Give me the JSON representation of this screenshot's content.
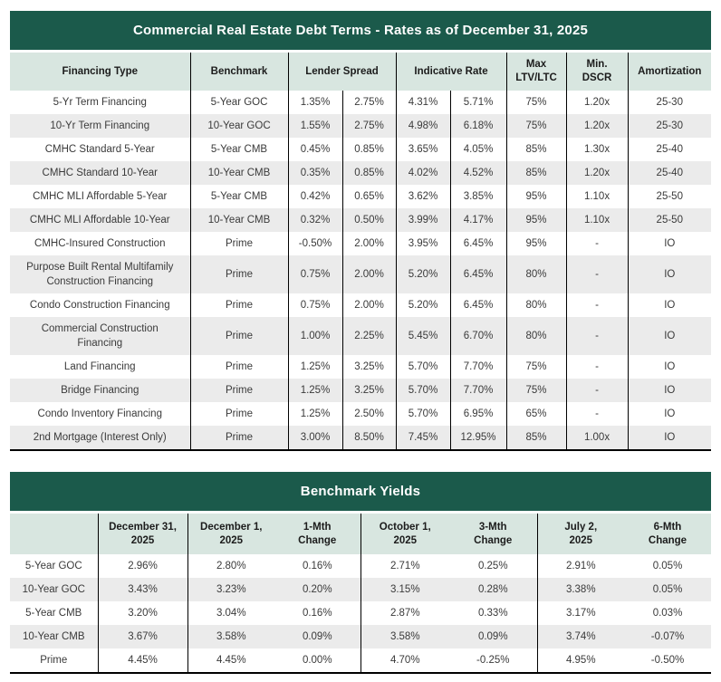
{
  "brand_colors": {
    "dark_green": "#1b5a4b",
    "light_green_header": "#d8e6e0",
    "alt_row_gray": "#ebebeb"
  },
  "debt_table": {
    "title": "Commercial Real Estate Debt Terms - Rates as of December 31, 2025",
    "headers": [
      "Financing Type",
      "Benchmark",
      "Lender Spread",
      "Indicative Rate",
      "Max\nLTV/LTC",
      "Min.\nDSCR",
      "Amortization"
    ],
    "rows": [
      [
        "5-Yr Term Financing",
        "5-Year GOC",
        "1.35%",
        "2.75%",
        "4.31%",
        "5.71%",
        "75%",
        "1.20x",
        "25-30"
      ],
      [
        "10-Yr Term Financing",
        "10-Year GOC",
        "1.55%",
        "2.75%",
        "4.98%",
        "6.18%",
        "75%",
        "1.20x",
        "25-30"
      ],
      [
        "CMHC Standard 5-Year",
        "5-Year CMB",
        "0.45%",
        "0.85%",
        "3.65%",
        "4.05%",
        "85%",
        "1.30x",
        "25-40"
      ],
      [
        "CMHC Standard 10-Year",
        "10-Year CMB",
        "0.35%",
        "0.85%",
        "4.02%",
        "4.52%",
        "85%",
        "1.20x",
        "25-40"
      ],
      [
        "CMHC MLI Affordable 5-Year",
        "5-Year CMB",
        "0.42%",
        "0.65%",
        "3.62%",
        "3.85%",
        "95%",
        "1.10x",
        "25-50"
      ],
      [
        "CMHC MLI Affordable 10-Year",
        "10-Year CMB",
        "0.32%",
        "0.50%",
        "3.99%",
        "4.17%",
        "95%",
        "1.10x",
        "25-50"
      ],
      [
        "CMHC-Insured Construction",
        "Prime",
        "-0.50%",
        "2.00%",
        "3.95%",
        "6.45%",
        "95%",
        "-",
        "IO"
      ],
      [
        "Purpose Built Rental Multifamily\nConstruction Financing",
        "Prime",
        "0.75%",
        "2.00%",
        "5.20%",
        "6.45%",
        "80%",
        "-",
        "IO"
      ],
      [
        "Condo Construction Financing",
        "Prime",
        "0.75%",
        "2.00%",
        "5.20%",
        "6.45%",
        "80%",
        "-",
        "IO"
      ],
      [
        "Commercial Construction\nFinancing",
        "Prime",
        "1.00%",
        "2.25%",
        "5.45%",
        "6.70%",
        "80%",
        "-",
        "IO"
      ],
      [
        "Land Financing",
        "Prime",
        "1.25%",
        "3.25%",
        "5.70%",
        "7.70%",
        "75%",
        "-",
        "IO"
      ],
      [
        "Bridge Financing",
        "Prime",
        "1.25%",
        "3.25%",
        "5.70%",
        "7.70%",
        "75%",
        "-",
        "IO"
      ],
      [
        "Condo Inventory Financing",
        "Prime",
        "1.25%",
        "2.50%",
        "5.70%",
        "6.95%",
        "65%",
        "-",
        "IO"
      ],
      [
        "2nd Mortgage (Interest Only)",
        "Prime",
        "3.00%",
        "8.50%",
        "7.45%",
        "12.95%",
        "85%",
        "1.00x",
        "IO"
      ]
    ]
  },
  "yields_table": {
    "title": "Benchmark Yields",
    "headers": [
      "",
      "December 31,\n2025",
      "December 1,\n2025",
      "1-Mth\nChange",
      "October 1,\n2025",
      "3-Mth\nChange",
      "July 2,\n2025",
      "6-Mth\nChange"
    ],
    "rows": [
      [
        "5-Year GOC",
        "2.96%",
        "2.80%",
        "0.16%",
        "2.71%",
        "0.25%",
        "2.91%",
        "0.05%"
      ],
      [
        "10-Year GOC",
        "3.43%",
        "3.23%",
        "0.20%",
        "3.15%",
        "0.28%",
        "3.38%",
        "0.05%"
      ],
      [
        "5-Year CMB",
        "3.20%",
        "3.04%",
        "0.16%",
        "2.87%",
        "0.33%",
        "3.17%",
        "0.03%"
      ],
      [
        "10-Year CMB",
        "3.67%",
        "3.58%",
        "0.09%",
        "3.58%",
        "0.09%",
        "3.74%",
        "-0.07%"
      ],
      [
        "Prime",
        "4.45%",
        "4.45%",
        "0.00%",
        "4.70%",
        "-0.25%",
        "4.95%",
        "-0.50%"
      ]
    ]
  }
}
